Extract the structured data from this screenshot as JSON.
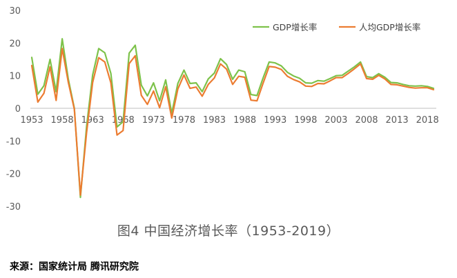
{
  "caption": "图4  中国经济增长率（1953-2019）",
  "source": "来源：国家统计局 腾讯研究院",
  "colors": {
    "gdp": "#7dc24a",
    "per_capita": "#ec7c31",
    "zero_line": "#bfbfbf",
    "axis_text": "#595959"
  },
  "chart_data": {
    "type": "line",
    "title": "",
    "xlabel": "",
    "ylabel": "",
    "ylim": [
      -30,
      30
    ],
    "yticks": [
      -30,
      -20,
      -10,
      0,
      10,
      20,
      30
    ],
    "xlim": [
      1953,
      2019
    ],
    "xticks": [
      1953,
      1958,
      1963,
      1968,
      1973,
      1978,
      1983,
      1988,
      1993,
      1998,
      2003,
      2008,
      2013,
      2018
    ],
    "grid": false,
    "legend_position": "top-right",
    "x": [
      1953,
      1954,
      1955,
      1956,
      1957,
      1958,
      1959,
      1960,
      1961,
      1962,
      1963,
      1964,
      1965,
      1966,
      1967,
      1968,
      1969,
      1970,
      1971,
      1972,
      1973,
      1974,
      1975,
      1976,
      1977,
      1978,
      1979,
      1980,
      1981,
      1982,
      1983,
      1984,
      1985,
      1986,
      1987,
      1988,
      1989,
      1990,
      1991,
      1992,
      1993,
      1994,
      1995,
      1996,
      1997,
      1998,
      1999,
      2000,
      2001,
      2002,
      2003,
      2004,
      2005,
      2006,
      2007,
      2008,
      2009,
      2010,
      2011,
      2012,
      2013,
      2014,
      2015,
      2016,
      2017,
      2018,
      2019
    ],
    "series": [
      {
        "name": "GDP增长率",
        "key": "gdp",
        "values": [
          15.6,
          4.3,
          6.9,
          15.0,
          5.1,
          21.3,
          9.0,
          0.0,
          -27.3,
          -5.6,
          10.2,
          18.3,
          17.0,
          10.7,
          -5.7,
          -4.1,
          16.9,
          19.3,
          7.1,
          3.8,
          7.8,
          2.3,
          8.7,
          -1.6,
          7.6,
          11.7,
          7.6,
          7.8,
          5.1,
          9.0,
          10.8,
          15.2,
          13.4,
          8.9,
          11.7,
          11.2,
          4.2,
          3.9,
          9.3,
          14.2,
          13.9,
          13.0,
          11.0,
          9.9,
          9.2,
          7.8,
          7.7,
          8.5,
          8.3,
          9.1,
          10.0,
          10.1,
          11.4,
          12.7,
          14.2,
          9.7,
          9.4,
          10.6,
          9.5,
          7.9,
          7.8,
          7.3,
          6.9,
          6.8,
          6.9,
          6.7,
          6.1
        ]
      },
      {
        "name": "人均GDP增长率",
        "key": "per_capita",
        "values": [
          13.1,
          1.9,
          4.6,
          12.7,
          2.4,
          18.3,
          8.0,
          -0.3,
          -26.6,
          -7.5,
          7.9,
          15.5,
          14.2,
          7.8,
          -8.2,
          -6.8,
          13.7,
          16.1,
          4.0,
          1.2,
          5.3,
          0.2,
          6.6,
          -3.0,
          5.9,
          10.2,
          6.1,
          6.5,
          3.7,
          7.3,
          9.3,
          13.6,
          12.0,
          7.3,
          9.8,
          9.5,
          2.5,
          2.3,
          7.7,
          12.8,
          12.6,
          11.9,
          9.8,
          8.8,
          8.1,
          6.8,
          6.7,
          7.6,
          7.5,
          8.4,
          9.4,
          9.4,
          10.7,
          12.1,
          13.6,
          9.1,
          8.9,
          10.1,
          9.0,
          7.3,
          7.2,
          6.8,
          6.4,
          6.2,
          6.3,
          6.3,
          5.7
        ]
      }
    ]
  }
}
